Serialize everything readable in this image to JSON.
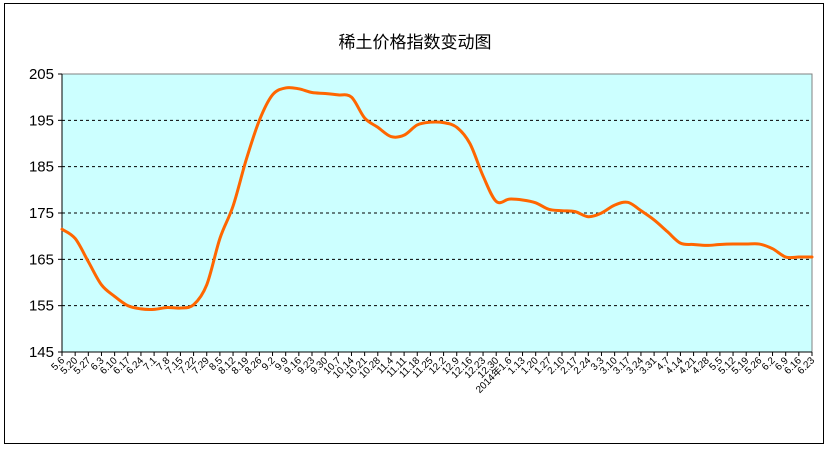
{
  "chart_data": {
    "type": "line",
    "title": "稀土价格指数变动图",
    "xlabel": "",
    "ylabel": "",
    "ylim": [
      145,
      205
    ],
    "yticks": [
      145,
      155,
      165,
      175,
      185,
      195,
      205
    ],
    "grid": "horizontal dashed",
    "plot_background": "#ccffff",
    "series": [
      {
        "color": "#ff6600",
        "values": [
          171.5,
          169.5,
          164.5,
          159.5,
          157.0,
          155.0,
          154.3,
          154.2,
          154.6,
          154.5,
          155.2,
          159.5,
          169.5,
          176.5,
          186.5,
          195.0,
          200.5,
          202.0,
          201.8,
          201.0,
          200.8,
          200.5,
          200.0,
          195.5,
          193.5,
          191.5,
          191.8,
          194.0,
          194.6,
          194.5,
          193.5,
          190.0,
          183.0,
          177.5,
          178.0,
          177.8,
          177.2,
          175.8,
          175.5,
          175.3,
          174.2,
          175.0,
          176.7,
          177.3,
          175.5,
          173.5,
          171.0,
          168.5,
          168.2,
          168.0,
          168.2,
          168.3,
          168.3,
          168.3,
          167.3,
          165.5,
          165.5,
          165.5
        ]
      }
    ],
    "x_tick_labels": [
      "5.6",
      "5.20",
      "5.27",
      "6.3",
      "6.10",
      "6.17",
      "6.24",
      "7.1",
      "7.8",
      "7.15",
      "7.22",
      "7.29",
      "8.5",
      "8.12",
      "8.19",
      "8.26",
      "9.2",
      "9.9",
      "9.16",
      "9.23",
      "9.30",
      "10.7",
      "10.14",
      "10.21",
      "10.28",
      "11.4",
      "11.11",
      "11.18",
      "11.25",
      "12.2",
      "12.9",
      "12.16",
      "12.23",
      "12.30",
      "2014年1.6",
      "1.13",
      "1.20",
      "1.27",
      "2.10",
      "2.17",
      "2.24",
      "3.3",
      "3.10",
      "3.17",
      "3.24",
      "3.31",
      "4.7",
      "4.14",
      "4.21",
      "4.28",
      "5.5",
      "5.12",
      "5.19",
      "5.26",
      "6.2",
      "6.9",
      "6.16",
      "6.23"
    ]
  }
}
